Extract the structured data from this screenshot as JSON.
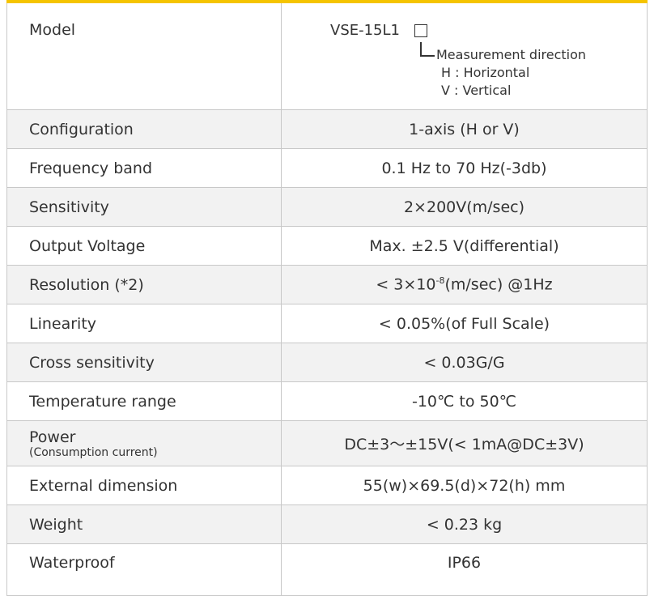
{
  "model": {
    "label": "Model",
    "code": "VSE-15L1",
    "legend_title": "Measurement direction",
    "options": [
      "H : Horizontal",
      "V : Vertical"
    ]
  },
  "table": {
    "rows": [
      {
        "label": "Configuration",
        "value": "1-axis (H or V)"
      },
      {
        "label": "Frequency band",
        "value": "0.1  Hz to 70 Hz(-3db)"
      },
      {
        "label": "Sensitivity",
        "value": "2×200V(m/sec)"
      },
      {
        "label": "Output Voltage",
        "value": "Max. ±2.5 V(differential)"
      },
      {
        "label": "Resolution (*2)",
        "value": "< 3×10",
        "value_sup": "-8",
        "value_suffix": "(m/sec) @1Hz"
      },
      {
        "label": "Linearity",
        "value": "<  0.05%(of Full Scale)"
      },
      {
        "label": "Cross sensitivity",
        "value": "< 0.03G/G"
      },
      {
        "label": "Temperature range",
        "value": "-10℃ to 50℃"
      },
      {
        "label": "Power",
        "label_note": "(Consumption current)",
        "value": "DC±3～±15V(< 1mA@DC±3V)"
      },
      {
        "label": "External dimension",
        "value": "55(w)×69.5(d)×72(h) mm"
      },
      {
        "label": "Weight",
        "value": "< 0.23 kg"
      },
      {
        "label": "Waterproof",
        "value": "IP66"
      }
    ]
  }
}
